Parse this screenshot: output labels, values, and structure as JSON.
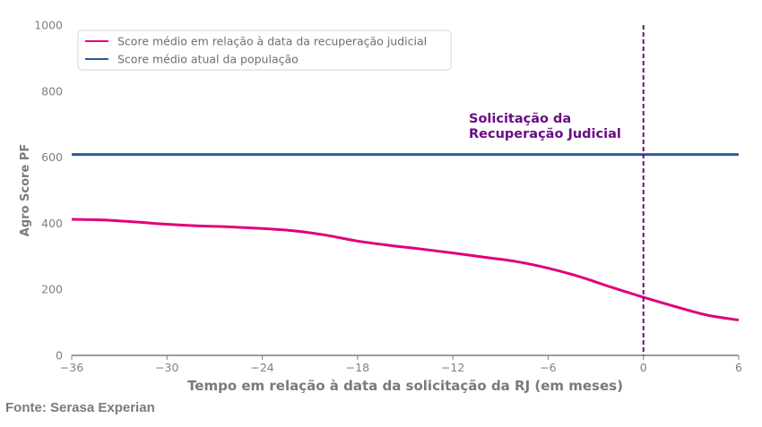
{
  "chart_data": {
    "type": "line",
    "xlabel": "Tempo em relação à data da solicitação da RJ (em meses)",
    "ylabel": "Agro Score PF",
    "xlim": [
      -36,
      6
    ],
    "ylim": [
      0,
      1000
    ],
    "x_ticks": [
      -36,
      -30,
      -24,
      -18,
      -12,
      -6,
      0,
      6
    ],
    "x_tick_labels": [
      "−36",
      "−30",
      "−24",
      "−18",
      "−12",
      "−6",
      "0",
      "6"
    ],
    "y_ticks": [
      0,
      200,
      400,
      600,
      800,
      1000
    ],
    "y_tick_labels": [
      "0",
      "200",
      "400",
      "600",
      "800",
      "1000"
    ],
    "grid": false,
    "legend_position": "top-left",
    "series": [
      {
        "name": "Score médio em relação à data da recuperação judicial",
        "color": "#e0007a",
        "x": [
          -36,
          -34,
          -32,
          -30,
          -28,
          -26,
          -24,
          -22,
          -20,
          -18,
          -16,
          -14,
          -12,
          -10,
          -8,
          -6,
          -4,
          -2,
          0,
          2,
          4,
          6
        ],
        "y": [
          412,
          410,
          404,
          397,
          392,
          389,
          384,
          377,
          364,
          346,
          333,
          322,
          310,
          297,
          284,
          264,
          238,
          206,
          176,
          148,
          122,
          107
        ]
      },
      {
        "name": "Score médio atual da população",
        "color": "#2c5a96",
        "x": [
          -36,
          6
        ],
        "y": [
          608,
          608
        ]
      }
    ],
    "vline": {
      "x": 0,
      "color": "#6a0d83",
      "style": "dashed"
    },
    "annotation": {
      "lines": [
        "Solicitação da",
        "Recuperação Judicial"
      ],
      "color": "#6a0d83"
    }
  },
  "source": "Fonte: Serasa Experian"
}
